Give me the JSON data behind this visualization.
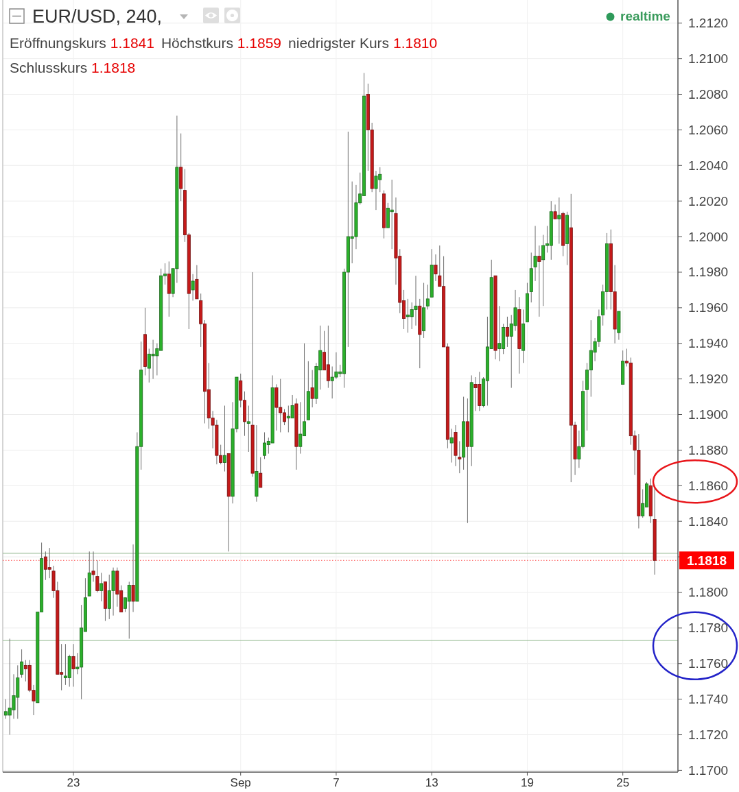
{
  "chart_data": {
    "type": "candlestick",
    "title": "EUR/USD, 240,",
    "annotations": [
      "Eröffnungskurs 1.1841",
      "Höchstkurs 1.1859",
      "niedrigster Kurs 1.1810",
      "Schlusskurs 1.1818",
      "realtime"
    ],
    "categories": [
      null,
      null,
      null,
      null,
      null,
      null,
      null,
      null,
      null,
      null,
      null,
      null,
      null,
      null,
      null,
      null,
      null,
      "23",
      null,
      null,
      null,
      null,
      null,
      null,
      null,
      null,
      null,
      null,
      null,
      null,
      null,
      null,
      null,
      null,
      null,
      null,
      null,
      null,
      null,
      null,
      null,
      null,
      null,
      null,
      null,
      null,
      null,
      null,
      null,
      null,
      null,
      null,
      null,
      null,
      null,
      null,
      null,
      null,
      null,
      "Sep",
      null,
      null,
      null,
      null,
      null,
      null,
      null,
      null,
      null,
      null,
      null,
      null,
      null,
      null,
      null,
      null,
      null,
      null,
      null,
      null,
      null,
      null,
      null,
      "7",
      null,
      null,
      null,
      null,
      null,
      null,
      null,
      null,
      null,
      null,
      null,
      null,
      null,
      null,
      null,
      null,
      null,
      null,
      null,
      null,
      null,
      null,
      null,
      "13",
      null,
      null,
      null,
      null,
      null,
      null,
      null,
      null,
      null,
      null,
      null,
      null,
      null,
      null,
      null,
      null,
      null,
      null,
      null,
      null,
      null,
      null,
      null,
      "19",
      null,
      null,
      null,
      null,
      null,
      null,
      null,
      null,
      null,
      null,
      null,
      null,
      null,
      null,
      null,
      null,
      null,
      null,
      null,
      null,
      null,
      null,
      null,
      "25",
      null,
      null,
      null,
      null,
      null,
      null,
      null,
      null
    ],
    "ohlc": [
      [
        1.1731,
        1.174,
        1.1729,
        1.1733
      ],
      [
        1.1731,
        1.1774,
        1.172,
        1.1735
      ],
      [
        1.1734,
        1.1754,
        1.1729,
        1.1742
      ],
      [
        1.1741,
        1.1759,
        1.1729,
        1.1752
      ],
      [
        1.1754,
        1.1768,
        1.1752,
        1.1761
      ],
      [
        1.1759,
        1.1762,
        1.175,
        1.1757
      ],
      [
        1.1759,
        1.1762,
        1.1744,
        1.1745
      ],
      [
        1.1745,
        1.1748,
        1.1731,
        1.1739
      ],
      [
        1.1738,
        1.1789,
        1.1738,
        1.1789
      ],
      [
        1.1789,
        1.1828,
        1.1789,
        1.1819
      ],
      [
        1.182,
        1.1823,
        1.1807,
        1.1813
      ],
      [
        1.1814,
        1.1825,
        1.1808,
        1.1813
      ],
      [
        1.1812,
        1.1815,
        1.1797,
        1.1801
      ],
      [
        1.1801,
        1.1806,
        1.1754,
        1.1754
      ],
      [
        1.1755,
        1.1771,
        1.1745,
        1.1754
      ],
      [
        1.1752,
        1.1771,
        1.1748,
        1.1753
      ],
      [
        1.1752,
        1.1765,
        1.1747,
        1.1764
      ],
      [
        1.1764,
        1.1771,
        1.1747,
        1.1757
      ],
      [
        1.1757,
        1.1766,
        1.1754,
        1.1758
      ],
      [
        1.1758,
        1.1793,
        1.174,
        1.178
      ],
      [
        1.1778,
        1.1808,
        1.1778,
        1.1797
      ],
      [
        1.1798,
        1.1823,
        1.1798,
        1.1811
      ],
      [
        1.1812,
        1.1823,
        1.1806,
        1.181
      ],
      [
        1.1809,
        1.1818,
        1.18,
        1.1801
      ],
      [
        1.1801,
        1.1811,
        1.1795,
        1.1805
      ],
      [
        1.1806,
        1.1806,
        1.1784,
        1.1791
      ],
      [
        1.1791,
        1.181,
        1.1785,
        1.1801
      ],
      [
        1.1801,
        1.1814,
        1.1787,
        1.1812
      ],
      [
        1.1812,
        1.1814,
        1.1792,
        1.1799
      ],
      [
        1.1801,
        1.1804,
        1.1789,
        1.1789
      ],
      [
        1.1791,
        1.1797,
        1.1789,
        1.1797
      ],
      [
        1.1795,
        1.1806,
        1.1774,
        1.1804
      ],
      [
        1.1804,
        1.1827,
        1.1789,
        1.1795
      ],
      [
        1.1795,
        1.189,
        1.1795,
        1.1882
      ],
      [
        1.1882,
        1.1941,
        1.1869,
        1.1925
      ],
      [
        1.1945,
        1.196,
        1.1922,
        1.1927
      ],
      [
        1.1926,
        1.1937,
        1.1918,
        1.1934
      ],
      [
        1.1933,
        1.1942,
        1.192,
        1.1934
      ],
      [
        1.1933,
        1.194,
        1.1922,
        1.1937
      ],
      [
        1.1936,
        1.1982,
        1.1936,
        1.1978
      ],
      [
        1.1978,
        1.1985,
        1.1973,
        1.1979
      ],
      [
        1.1979,
        1.1986,
        1.1955,
        1.1968
      ],
      [
        1.1968,
        1.1982,
        1.1966,
        1.1982
      ],
      [
        1.1982,
        1.2068,
        1.1974,
        1.2039
      ],
      [
        1.2039,
        1.2058,
        1.202,
        1.2027
      ],
      [
        1.2026,
        1.2038,
        1.1997,
        1.2001
      ],
      [
        1.2001,
        1.2002,
        1.1948,
        1.1968
      ],
      [
        1.197,
        1.1979,
        1.1964,
        1.1975
      ],
      [
        1.1976,
        1.1984,
        1.1965,
        1.1965
      ],
      [
        1.1964,
        1.1968,
        1.1938,
        1.1951
      ],
      [
        1.1951,
        1.1953,
        1.1895,
        1.1913
      ],
      [
        1.1914,
        1.1929,
        1.1892,
        1.1898
      ],
      [
        1.1898,
        1.1902,
        1.1881,
        1.1894
      ],
      [
        1.1894,
        1.1897,
        1.1872,
        1.1877
      ],
      [
        1.1877,
        1.1883,
        1.1872,
        1.1873
      ],
      [
        1.1873,
        1.1905,
        1.1868,
        1.1877
      ],
      [
        1.1878,
        1.1878,
        1.1823,
        1.1854
      ],
      [
        1.1854,
        1.1907,
        1.185,
        1.1892
      ],
      [
        1.1892,
        1.1921,
        1.189,
        1.1921
      ],
      [
        1.1919,
        1.1923,
        1.1904,
        1.1908
      ],
      [
        1.1908,
        1.1913,
        1.1888,
        1.1896
      ],
      [
        1.1895,
        1.1905,
        1.1879,
        1.1896
      ],
      [
        1.1894,
        1.198,
        1.1865,
        1.1867
      ],
      [
        1.1854,
        1.1894,
        1.1851,
        1.1868
      ],
      [
        1.1867,
        1.1876,
        1.1859,
        1.1859
      ],
      [
        1.1877,
        1.189,
        1.1875,
        1.1884
      ],
      [
        1.1883,
        1.1887,
        1.1878,
        1.1885
      ],
      [
        1.1884,
        1.1922,
        1.1884,
        1.1915
      ],
      [
        1.1915,
        1.1917,
        1.1891,
        1.1904
      ],
      [
        1.1904,
        1.192,
        1.189,
        1.1901
      ],
      [
        1.1901,
        1.1903,
        1.1894,
        1.1896
      ],
      [
        1.1898,
        1.1905,
        1.189,
        1.1899
      ],
      [
        1.1898,
        1.1911,
        1.1898,
        1.1905
      ],
      [
        1.1906,
        1.1909,
        1.1869,
        1.1882
      ],
      [
        1.1882,
        1.1907,
        1.1878,
        1.1889
      ],
      [
        1.1888,
        1.194,
        1.1888,
        1.1896
      ],
      [
        1.1897,
        1.193,
        1.1897,
        1.1913
      ],
      [
        1.1915,
        1.1925,
        1.1904,
        1.1909
      ],
      [
        1.1909,
        1.1929,
        1.1906,
        1.1927
      ],
      [
        1.1925,
        1.195,
        1.1914,
        1.1936
      ],
      [
        1.1935,
        1.1947,
        1.1925,
        1.1925
      ],
      [
        1.1928,
        1.195,
        1.1915,
        1.1919
      ],
      [
        1.1919,
        1.1927,
        1.1909,
        1.1921
      ],
      [
        1.1921,
        1.1935,
        1.192,
        1.1924
      ],
      [
        1.1923,
        1.1928,
        1.1921,
        1.1924
      ],
      [
        1.1923,
        1.1982,
        1.1915,
        1.198
      ],
      [
        1.198,
        1.2059,
        1.1938,
        1.2
      ],
      [
        1.1999,
        1.2031,
        1.1985,
        1.2
      ],
      [
        1.2,
        1.2029,
        1.1993,
        1.2019
      ],
      [
        1.2019,
        1.2036,
        1.2018,
        1.2024
      ],
      [
        1.2023,
        1.2092,
        1.2023,
        1.2079
      ],
      [
        1.208,
        1.2086,
        1.2037,
        1.206
      ],
      [
        1.206,
        1.2064,
        1.2025,
        1.2027
      ],
      [
        1.2027,
        1.2037,
        1.2015,
        1.2034
      ],
      [
        1.2032,
        1.2039,
        1.2025,
        1.2035
      ],
      [
        1.2024,
        1.2026,
        1.1999,
        1.2005
      ],
      [
        1.2005,
        1.2019,
        1.2005,
        1.2016
      ],
      [
        1.2014,
        1.2032,
        1.1993,
        1.2015
      ],
      [
        1.2013,
        1.2022,
        1.1973,
        1.1988
      ],
      [
        1.1989,
        1.1993,
        1.1957,
        1.1963
      ],
      [
        1.1964,
        1.197,
        1.1948,
        1.1954
      ],
      [
        1.1955,
        1.1965,
        1.1946,
        1.1956
      ],
      [
        1.1955,
        1.1963,
        1.1948,
        1.1959
      ],
      [
        1.1959,
        1.1978,
        1.195,
        1.1961
      ],
      [
        1.1961,
        1.1965,
        1.1926,
        1.1945
      ],
      [
        1.1947,
        1.1974,
        1.1943,
        1.196
      ],
      [
        1.1961,
        1.1973,
        1.1959,
        1.1965
      ],
      [
        1.1966,
        1.1993,
        1.1966,
        1.1984
      ],
      [
        1.1984,
        1.199,
        1.1975,
        1.1979
      ],
      [
        1.1978,
        1.1995,
        1.1972,
        1.1972
      ],
      [
        1.1972,
        1.1989,
        1.1938,
        1.1938
      ],
      [
        1.1938,
        1.194,
        1.1881,
        1.1886
      ],
      [
        1.1884,
        1.1892,
        1.1873,
        1.1887
      ],
      [
        1.189,
        1.1894,
        1.1871,
        1.1877
      ],
      [
        1.1876,
        1.1885,
        1.1867,
        1.1875
      ],
      [
        1.1876,
        1.191,
        1.1869,
        1.1896
      ],
      [
        1.1896,
        1.1909,
        1.1839,
        1.1882
      ],
      [
        1.1882,
        1.1922,
        1.1871,
        1.1918
      ],
      [
        1.1917,
        1.1921,
        1.1902,
        1.1915
      ],
      [
        1.1917,
        1.1924,
        1.1902,
        1.1905
      ],
      [
        1.1905,
        1.1921,
        1.1904,
        1.192
      ],
      [
        1.1919,
        1.1955,
        1.1905,
        1.1938
      ],
      [
        1.1937,
        1.1987,
        1.1937,
        1.1977
      ],
      [
        1.1978,
        1.1978,
        1.1931,
        1.1936
      ],
      [
        1.1937,
        1.1961,
        1.193,
        1.194
      ],
      [
        1.1937,
        1.1951,
        1.1934,
        1.1949
      ],
      [
        1.1949,
        1.1955,
        1.1938,
        1.1944
      ],
      [
        1.1944,
        1.1956,
        1.1915,
        1.1951
      ],
      [
        1.195,
        1.197,
        1.1947,
        1.196
      ],
      [
        1.1959,
        1.1966,
        1.1923,
        1.1937
      ],
      [
        1.1936,
        1.1959,
        1.1929,
        1.1951
      ],
      [
        1.1952,
        1.1974,
        1.1952,
        1.1968
      ],
      [
        1.1969,
        1.1991,
        1.1963,
        1.1982
      ],
      [
        1.1983,
        1.2006,
        1.1975,
        1.1989
      ],
      [
        1.1989,
        1.1995,
        1.1955,
        1.1986
      ],
      [
        1.1987,
        1.2001,
        1.1961,
        1.1995
      ],
      [
        1.1995,
        1.2006,
        1.1991,
        1.1996
      ],
      [
        1.1995,
        1.202,
        1.1987,
        1.2014
      ],
      [
        1.2014,
        1.2018,
        1.201,
        1.201
      ],
      [
        1.201,
        1.2022,
        1.1996,
        1.2012
      ],
      [
        1.2013,
        1.2014,
        1.1989,
        1.1995
      ],
      [
        1.1996,
        1.2014,
        1.1984,
        1.2012
      ],
      [
        1.2005,
        1.2024,
        1.1862,
        1.1894
      ],
      [
        1.1894,
        1.1896,
        1.1866,
        1.1875
      ],
      [
        1.1875,
        1.1891,
        1.187,
        1.1882
      ],
      [
        1.1882,
        1.1919,
        1.1881,
        1.1913
      ],
      [
        1.1914,
        1.1929,
        1.1891,
        1.1925
      ],
      [
        1.1925,
        1.1953,
        1.191,
        1.1936
      ],
      [
        1.1935,
        1.1943,
        1.193,
        1.1941
      ],
      [
        1.1941,
        1.1959,
        1.1938,
        1.1955
      ],
      [
        1.1956,
        1.1973,
        1.195,
        1.1969
      ],
      [
        1.1969,
        1.2002,
        1.1959,
        1.1996
      ],
      [
        1.1996,
        1.2004,
        1.1959,
        1.1969
      ],
      [
        1.1969,
        1.1984,
        1.194,
        1.1948
      ],
      [
        1.1946,
        1.1958,
        1.1942,
        1.1958
      ],
      [
        1.1917,
        1.1936,
        1.1917,
        1.193
      ],
      [
        1.193,
        1.1937,
        1.1927,
        1.1929
      ],
      [
        1.1929,
        1.1932,
        1.1883,
        1.1888
      ],
      [
        1.1888,
        1.1891,
        1.1866,
        1.188
      ],
      [
        1.188,
        1.1889,
        1.1836,
        1.1843
      ],
      [
        1.1843,
        1.1858,
        1.1842,
        1.185
      ],
      [
        1.1848,
        1.1862,
        1.1848,
        1.1861
      ],
      [
        1.186,
        1.1864,
        1.1839,
        1.1843
      ],
      [
        1.1841,
        1.1859,
        1.181,
        1.1818
      ]
    ],
    "colors": [
      "#2bb02b",
      "#2bb02b",
      "#2bb02b",
      "#2bb02b",
      "#2bb02b",
      "#c41a1a",
      "#c41a1a",
      "#c41a1a",
      "#2bb02b",
      "#2bb02b",
      "#c41a1a",
      "#c41a1a",
      "#c41a1a",
      "#c41a1a",
      "#c41a1a",
      "#2bb02b",
      "#2bb02b",
      "#c41a1a",
      "#2bb02b",
      "#2bb02b",
      "#2bb02b",
      "#2bb02b",
      "#c41a1a",
      "#c41a1a",
      "#2bb02b",
      "#c41a1a",
      "#2bb02b",
      "#2bb02b",
      "#c41a1a",
      "#c41a1a",
      "#2bb02b",
      "#2bb02b",
      "#c41a1a",
      "#2bb02b",
      "#2bb02b",
      "#c41a1a",
      "#2bb02b",
      "#2bb02b",
      "#2bb02b",
      "#2bb02b",
      "#2bb02b",
      "#c41a1a",
      "#2bb02b",
      "#2bb02b",
      "#c41a1a",
      "#c41a1a",
      "#c41a1a",
      "#2bb02b",
      "#c41a1a",
      "#c41a1a",
      "#c41a1a",
      "#c41a1a",
      "#c41a1a",
      "#c41a1a",
      "#c41a1a",
      "#2bb02b",
      "#c41a1a",
      "#2bb02b",
      "#2bb02b",
      "#c41a1a",
      "#c41a1a",
      "#2bb02b",
      "#c41a1a",
      "#2bb02b",
      "#c41a1a",
      "#2bb02b",
      "#2bb02b",
      "#2bb02b",
      "#c41a1a",
      "#c41a1a",
      "#c41a1a",
      "#2bb02b",
      "#2bb02b",
      "#c41a1a",
      "#2bb02b",
      "#2bb02b",
      "#2bb02b",
      "#c41a1a",
      "#2bb02b",
      "#2bb02b",
      "#c41a1a",
      "#c41a1a",
      "#2bb02b",
      "#2bb02b",
      "#2bb02b",
      "#2bb02b",
      "#2bb02b",
      "#2bb02b",
      "#2bb02b",
      "#2bb02b",
      "#2bb02b",
      "#c41a1a",
      "#c41a1a",
      "#2bb02b",
      "#2bb02b",
      "#c41a1a",
      "#2bb02b",
      "#2bb02b",
      "#c41a1a",
      "#c41a1a",
      "#c41a1a",
      "#2bb02b",
      "#2bb02b",
      "#2bb02b",
      "#c41a1a",
      "#2bb02b",
      "#2bb02b",
      "#2bb02b",
      "#c41a1a",
      "#c41a1a",
      "#c41a1a",
      "#c41a1a",
      "#2bb02b",
      "#c41a1a",
      "#c41a1a",
      "#2bb02b",
      "#c41a1a",
      "#2bb02b",
      "#c41a1a",
      "#c41a1a",
      "#2bb02b",
      "#2bb02b",
      "#2bb02b",
      "#c41a1a",
      "#2bb02b",
      "#2bb02b",
      "#c41a1a",
      "#2bb02b",
      "#2bb02b",
      "#c41a1a",
      "#2bb02b",
      "#2bb02b",
      "#2bb02b",
      "#2bb02b",
      "#c41a1a",
      "#2bb02b",
      "#2bb02b",
      "#2bb02b",
      "#c41a1a",
      "#2bb02b",
      "#c41a1a",
      "#2bb02b",
      "#c41a1a",
      "#c41a1a",
      "#2bb02b",
      "#2bb02b",
      "#2bb02b",
      "#2bb02b",
      "#2bb02b",
      "#2bb02b",
      "#2bb02b",
      "#2bb02b",
      "#c41a1a",
      "#c41a1a",
      "#2bb02b",
      "#2bb02b",
      "#c41a1a",
      "#c41a1a",
      "#c41a1a",
      "#c41a1a",
      "#2bb02b",
      "#2bb02b",
      "#c41a1a",
      "#c41a1a"
    ],
    "ylim": [
      1.1699,
      1.2133
    ],
    "yticks": [
      {
        "value": 1.17,
        "label": "1.1700"
      },
      {
        "value": 1.172,
        "label": "1.1720"
      },
      {
        "value": 1.174,
        "label": "1.1740"
      },
      {
        "value": 1.176,
        "label": "1.1760"
      },
      {
        "value": 1.178,
        "label": "1.1780"
      },
      {
        "value": 1.18,
        "label": "1.1800"
      },
      {
        "value": 1.182,
        "label": null
      },
      {
        "value": 1.184,
        "label": "1.1840"
      },
      {
        "value": 1.186,
        "label": "1.1860"
      },
      {
        "value": 1.188,
        "label": "1.1880"
      },
      {
        "value": 1.19,
        "label": "1.1900"
      },
      {
        "value": 1.192,
        "label": "1.1920"
      },
      {
        "value": 1.194,
        "label": "1.1940"
      },
      {
        "value": 1.196,
        "label": "1.1960"
      },
      {
        "value": 1.198,
        "label": "1.1980"
      },
      {
        "value": 1.2,
        "label": "1.2000"
      },
      {
        "value": 1.202,
        "label": "1.2020"
      },
      {
        "value": 1.204,
        "label": "1.2040"
      },
      {
        "value": 1.206,
        "label": "1.2060"
      },
      {
        "value": 1.208,
        "label": "1.2080"
      },
      {
        "value": 1.21,
        "label": "1.2100"
      },
      {
        "value": 1.212,
        "label": "1.2120"
      }
    ],
    "grid": true,
    "ref_lines": [
      {
        "axis": "y",
        "value": 1.1822,
        "color": "#8db58a"
      },
      {
        "axis": "y",
        "value": 1.1773,
        "color": "#8db58a"
      },
      {
        "axis": "y",
        "value": 1.1818,
        "label": "1.1818",
        "color": "#ff0000",
        "line_style": "dotted"
      }
    ]
  }
}
